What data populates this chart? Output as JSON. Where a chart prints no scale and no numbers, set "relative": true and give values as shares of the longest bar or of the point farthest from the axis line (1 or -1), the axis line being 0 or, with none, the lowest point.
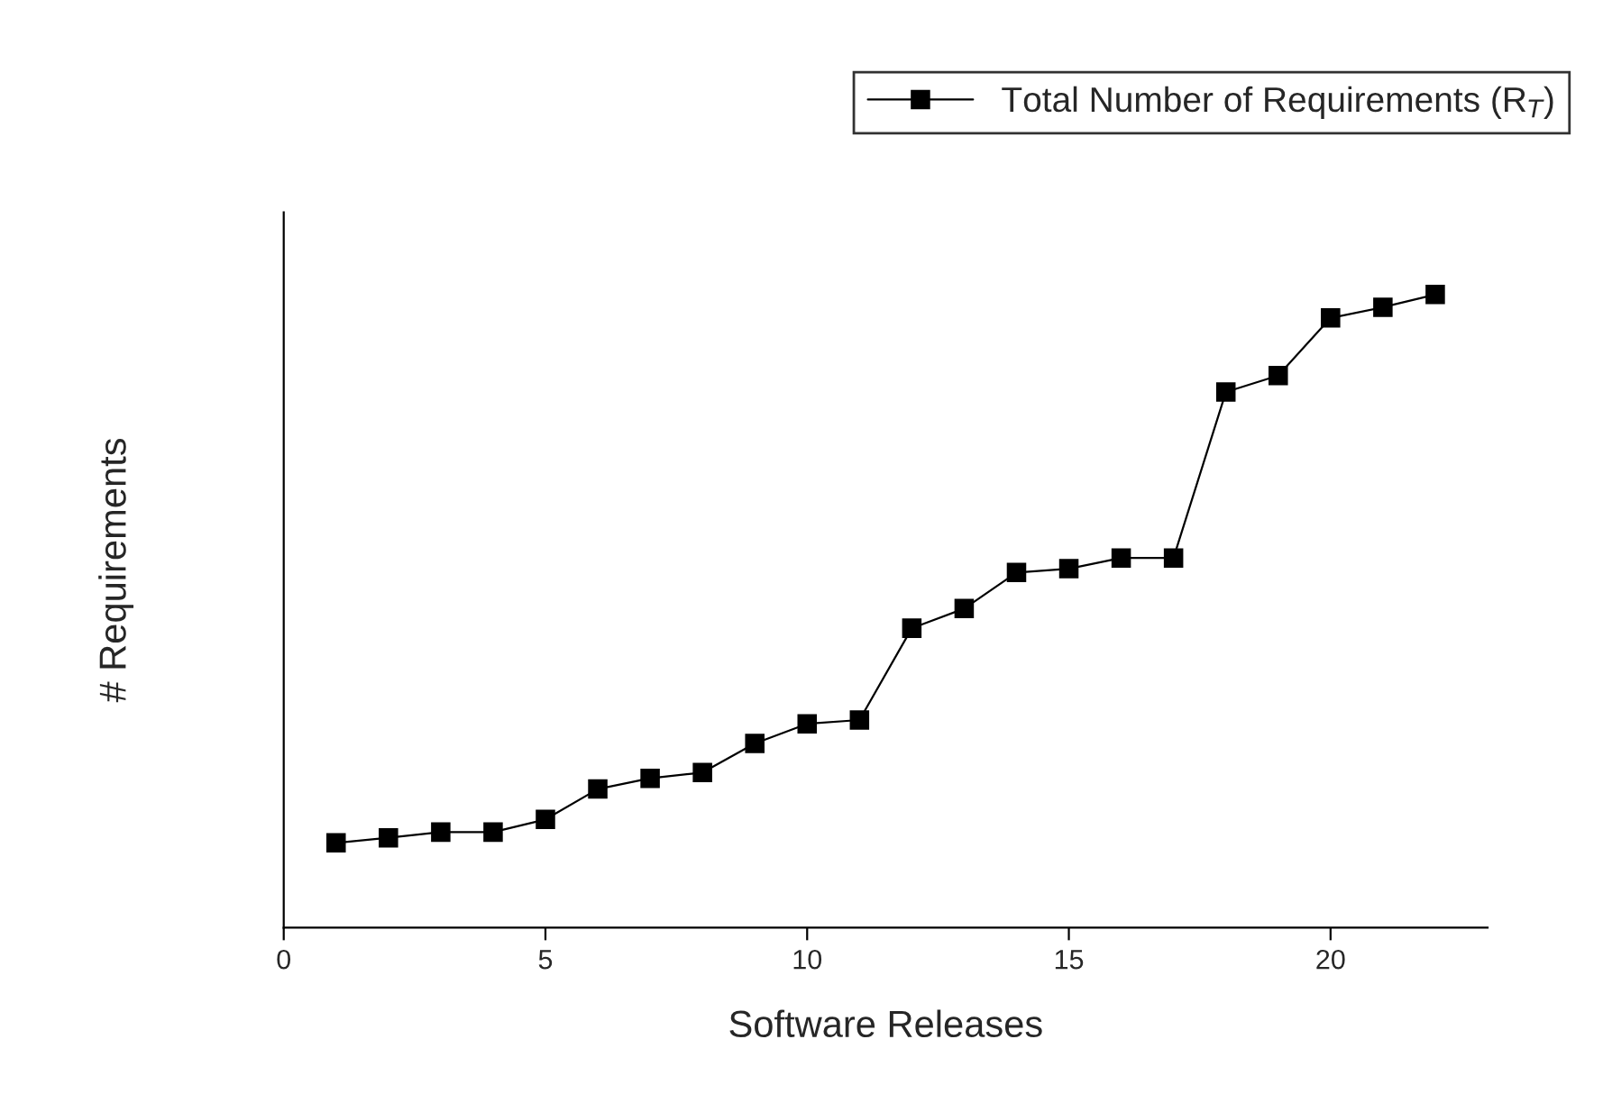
{
  "chart_data": {
    "type": "line",
    "xlabel": "Software Releases",
    "ylabel": "# Requirements",
    "relative": true,
    "x": [
      1,
      2,
      3,
      4,
      5,
      6,
      7,
      8,
      9,
      10,
      11,
      12,
      13,
      14,
      15,
      16,
      17,
      18,
      19,
      20,
      21,
      22
    ],
    "series": [
      {
        "name": "Total Number of Requirements (R$_{T}$)",
        "color": "#000000",
        "values": [
          0.134,
          0.142,
          0.151,
          0.151,
          0.171,
          0.219,
          0.236,
          0.245,
          0.291,
          0.322,
          0.328,
          0.473,
          0.504,
          0.561,
          0.567,
          0.584,
          0.584,
          0.846,
          0.872,
          0.963,
          0.98,
          1.0
        ]
      }
    ],
    "xlim": [
      0,
      23
    ],
    "xticks": [
      0,
      5,
      10,
      15,
      20
    ],
    "grid": false,
    "legend": "top right",
    "marker": "square",
    "line_style": "solid"
  }
}
